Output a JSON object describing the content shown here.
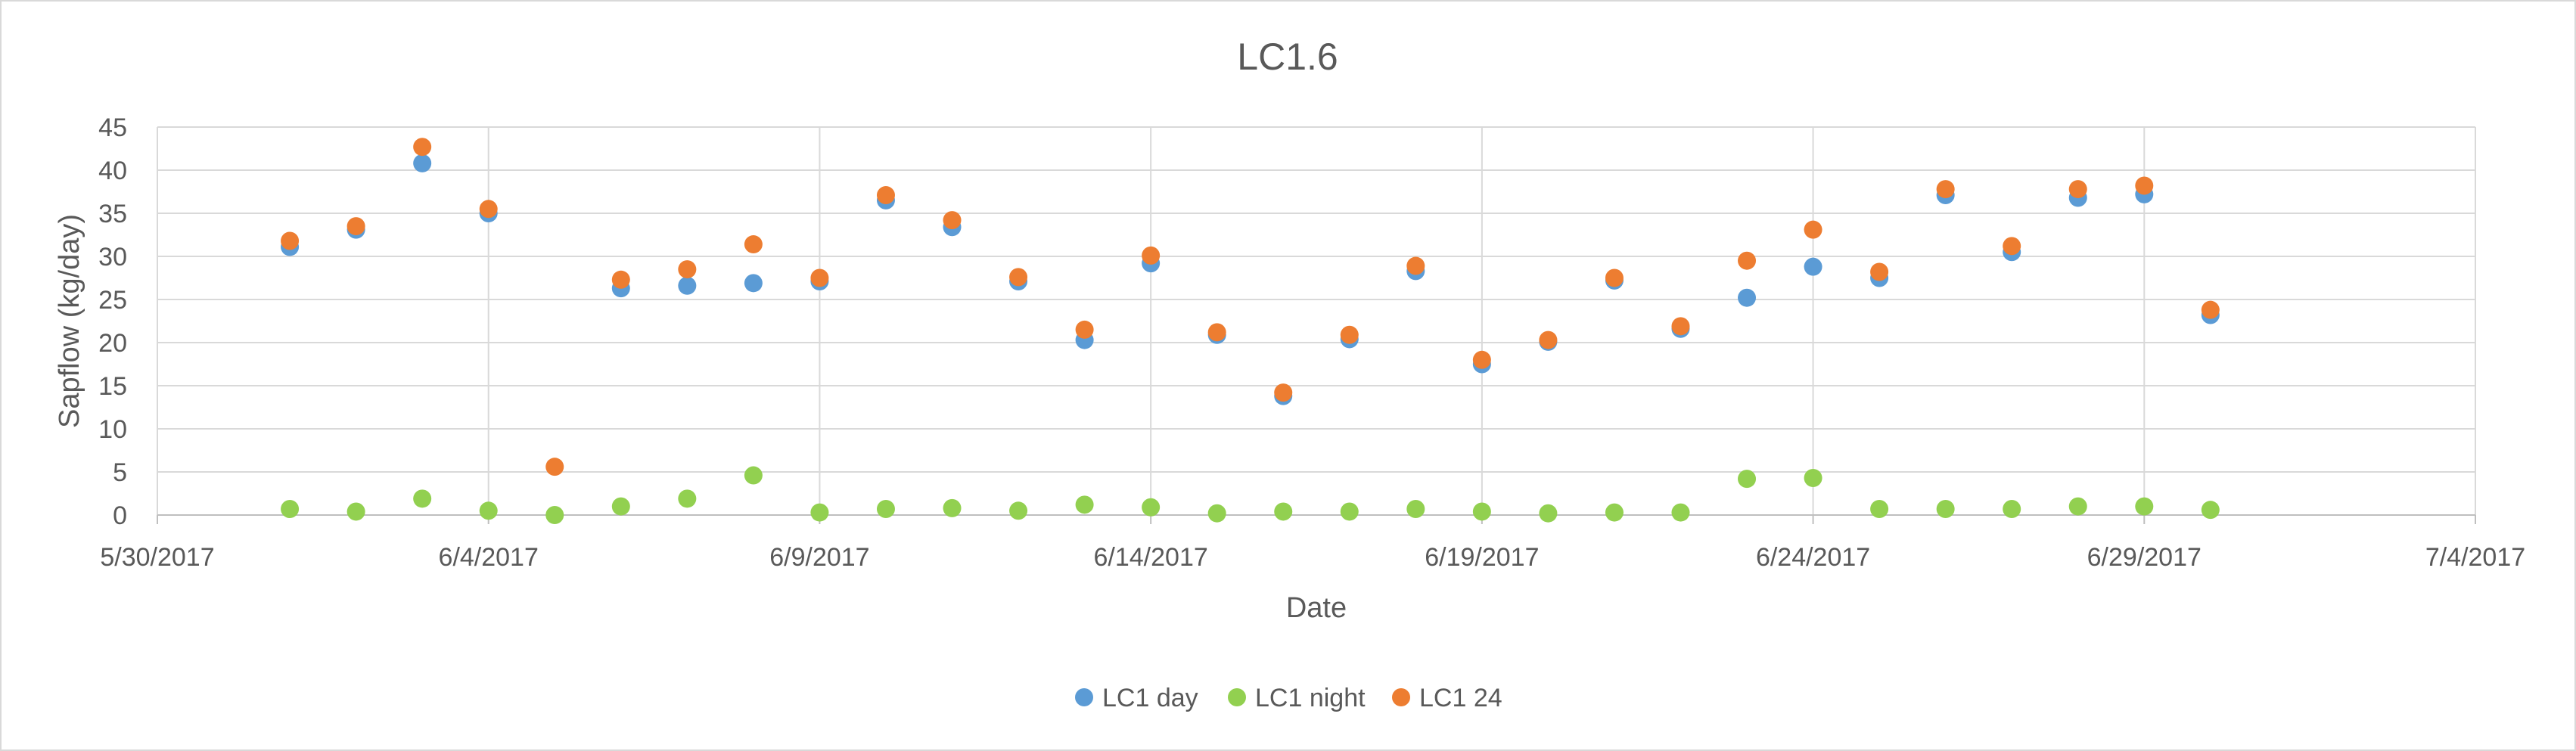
{
  "chart_data": {
    "type": "scatter",
    "title": "LC1.6",
    "xlabel": "Date",
    "ylabel": "Sapflow (kg/day)",
    "xlim": [
      "5/30/2017",
      "7/4/2017"
    ],
    "ylim": [
      0,
      45
    ],
    "x_ticks": [
      "5/30/2017",
      "6/4/2017",
      "6/9/2017",
      "6/14/2017",
      "6/19/2017",
      "6/24/2017",
      "6/29/2017",
      "7/4/2017"
    ],
    "y_ticks": [
      0,
      5,
      10,
      15,
      20,
      25,
      30,
      35,
      40,
      45
    ],
    "grid": true,
    "legend_position": "bottom",
    "x": [
      "6/1/2017",
      "6/2/2017",
      "6/3/2017",
      "6/4/2017",
      "6/5/2017",
      "6/6/2017",
      "6/7/2017",
      "6/8/2017",
      "6/9/2017",
      "6/10/2017",
      "6/11/2017",
      "6/12/2017",
      "6/13/2017",
      "6/14/2017",
      "6/15/2017",
      "6/16/2017",
      "6/17/2017",
      "6/18/2017",
      "6/19/2017",
      "6/20/2017",
      "6/21/2017",
      "6/22/2017",
      "6/23/2017",
      "6/24/2017",
      "6/25/2017",
      "6/26/2017",
      "6/27/2017",
      "6/28/2017",
      "6/29/2017",
      "6/30/2017"
    ],
    "series": [
      {
        "name": "LC1 day",
        "color": "#5b9bd5",
        "values": [
          31.1,
          33.1,
          40.8,
          35.0,
          null,
          26.3,
          26.6,
          26.9,
          27.1,
          36.5,
          33.4,
          27.1,
          20.3,
          29.2,
          20.9,
          13.8,
          20.4,
          28.3,
          17.5,
          20.1,
          27.2,
          21.6,
          25.2,
          28.8,
          27.5,
          37.1,
          30.5,
          36.8,
          37.2,
          23.2
        ]
      },
      {
        "name": "LC1 night",
        "color": "#92d050",
        "values": [
          0.7,
          0.4,
          1.9,
          0.5,
          0.0,
          1.0,
          1.9,
          4.6,
          0.3,
          0.7,
          0.8,
          0.5,
          1.2,
          0.9,
          0.2,
          0.4,
          0.4,
          0.7,
          0.4,
          0.2,
          0.3,
          0.3,
          4.2,
          4.3,
          0.7,
          0.7,
          0.7,
          1.0,
          1.0,
          0.6
        ]
      },
      {
        "name": "LC1 24",
        "color": "#ed7d31",
        "values": [
          31.8,
          33.5,
          42.7,
          35.5,
          5.6,
          27.3,
          28.5,
          31.4,
          27.5,
          37.1,
          34.2,
          27.6,
          21.5,
          30.1,
          21.2,
          14.2,
          20.9,
          28.9,
          18.0,
          20.3,
          27.5,
          21.9,
          29.5,
          33.1,
          28.2,
          37.8,
          31.2,
          37.8,
          38.2,
          23.8
        ]
      }
    ]
  }
}
